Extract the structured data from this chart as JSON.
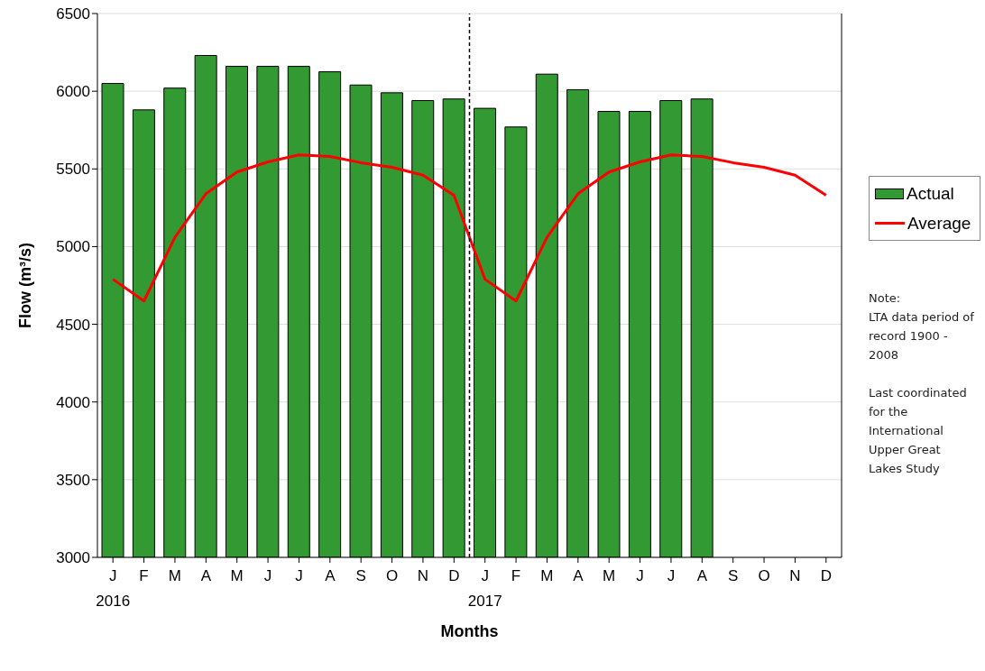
{
  "chart_data": {
    "type": "bar",
    "xlabel": "Months",
    "ylabel": "Flow (m³/s)",
    "categories": [
      "J\n2016",
      "F",
      "M",
      "A",
      "M",
      "J",
      "J",
      "A",
      "S",
      "O",
      "N",
      "D",
      "J\n2017",
      "F",
      "M",
      "A",
      "M",
      "J",
      "J",
      "A",
      "S",
      "O",
      "N",
      "D"
    ],
    "series": [
      {
        "name": "Actual",
        "color": "#339933",
        "values": [
          6050,
          5880,
          6020,
          6230,
          6160,
          6160,
          6160,
          6125,
          6040,
          5990,
          5940,
          5950,
          5890,
          5770,
          6110,
          6010,
          5870,
          5870,
          5940,
          5950,
          null,
          null,
          null,
          null
        ]
      },
      {
        "name": "Average",
        "type": "line",
        "color": "#ff0000",
        "values": [
          4790,
          4650,
          5060,
          5340,
          5480,
          5545,
          5590,
          5580,
          5540,
          5510,
          5460,
          5330,
          4790,
          4650,
          5060,
          5340,
          5480,
          5545,
          5590,
          5580,
          5540,
          5510,
          5460,
          5330
        ]
      }
    ],
    "ylim": [
      3000,
      6500
    ],
    "yticks": [
      3000,
      3500,
      4000,
      4500,
      5000,
      5500,
      6000,
      6500
    ],
    "grid": "y",
    "legend": "right",
    "marker": "none",
    "line_style": "solid",
    "ref_lines": [
      {
        "axis": "x",
        "value": "J\n2017",
        "color": "#000000",
        "line_style": "dashed"
      }
    ],
    "annotations": [
      "Note:\nLTA data period of record 1900 - 2008",
      "Last coordinated for the International Upper Great Lakes Study"
    ]
  }
}
